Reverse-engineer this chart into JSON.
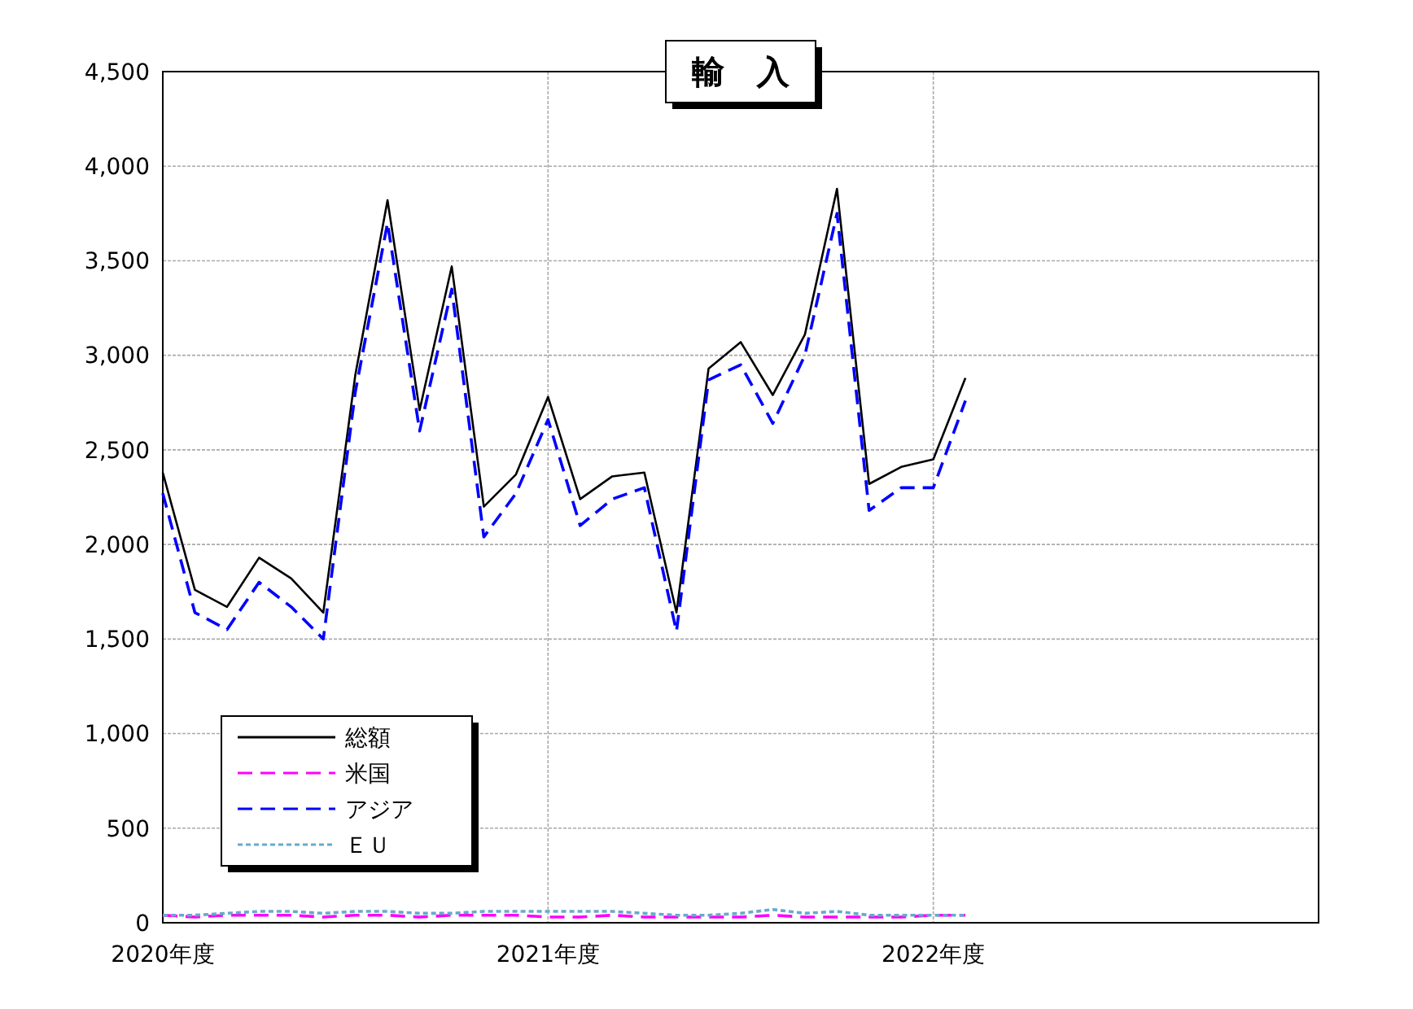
{
  "chart_data": {
    "type": "line",
    "title": "輸　入",
    "categories": [
      "2020年度",
      null,
      null,
      null,
      null,
      null,
      null,
      null,
      null,
      null,
      null,
      null,
      "2021年度",
      null,
      null,
      null,
      null,
      null,
      null,
      null,
      null,
      null,
      null,
      null,
      "2022年度",
      null,
      null,
      null,
      null,
      null,
      null,
      null,
      null,
      null,
      null,
      null
    ],
    "ylim": [
      0,
      4500
    ],
    "yticks": [
      {
        "value": 0,
        "label": "0"
      },
      {
        "value": 500,
        "label": "500"
      },
      {
        "value": 1000,
        "label": "1,000"
      },
      {
        "value": 1500,
        "label": "1,500"
      },
      {
        "value": 2000,
        "label": "2,000"
      },
      {
        "value": 2500,
        "label": "2,500"
      },
      {
        "value": 3000,
        "label": "3,000"
      },
      {
        "value": 3500,
        "label": "3,500"
      },
      {
        "value": 4000,
        "label": "4,000"
      },
      {
        "value": 4500,
        "label": "4,500"
      }
    ],
    "grid": true,
    "legend": "bottom left",
    "marker": "none",
    "series": [
      {
        "name": "総額",
        "color": "#000000",
        "line_style": "solid",
        "values": [
          2380,
          1760,
          1670,
          1930,
          1820,
          1640,
          2900,
          3820,
          2710,
          3470,
          2200,
          2370,
          2780,
          2240,
          2360,
          2380,
          1640,
          2930,
          3070,
          2790,
          3110,
          3880,
          2320,
          2410,
          2450,
          2880,
          null,
          null,
          null,
          null,
          null,
          null,
          null,
          null,
          null,
          null
        ]
      },
      {
        "name": "米国",
        "color": "#ff00ff",
        "line_style": "dashed",
        "values": [
          40,
          30,
          40,
          40,
          40,
          30,
          40,
          40,
          30,
          40,
          40,
          40,
          30,
          30,
          40,
          30,
          30,
          30,
          30,
          40,
          30,
          30,
          30,
          30,
          40,
          40,
          null,
          null,
          null,
          null,
          null,
          null,
          null,
          null,
          null,
          null
        ]
      },
      {
        "name": "アジア",
        "color": "#0000ff",
        "line_style": "dashed",
        "values": [
          2270,
          1640,
          1550,
          1800,
          1670,
          1500,
          2810,
          3700,
          2600,
          3350,
          2040,
          2270,
          2660,
          2100,
          2240,
          2300,
          1540,
          2870,
          2950,
          2640,
          3000,
          3750,
          2180,
          2300,
          2300,
          2760,
          null,
          null,
          null,
          null,
          null,
          null,
          null,
          null,
          null,
          null
        ]
      },
      {
        "name": "ＥＵ",
        "color": "#66aacc",
        "line_style": "dotted",
        "values": [
          40,
          40,
          50,
          60,
          60,
          50,
          60,
          60,
          50,
          50,
          60,
          60,
          60,
          60,
          60,
          50,
          40,
          40,
          50,
          70,
          50,
          60,
          40,
          40,
          40,
          40,
          null,
          null,
          null,
          null,
          null,
          null,
          null,
          null,
          null,
          null
        ]
      }
    ]
  }
}
